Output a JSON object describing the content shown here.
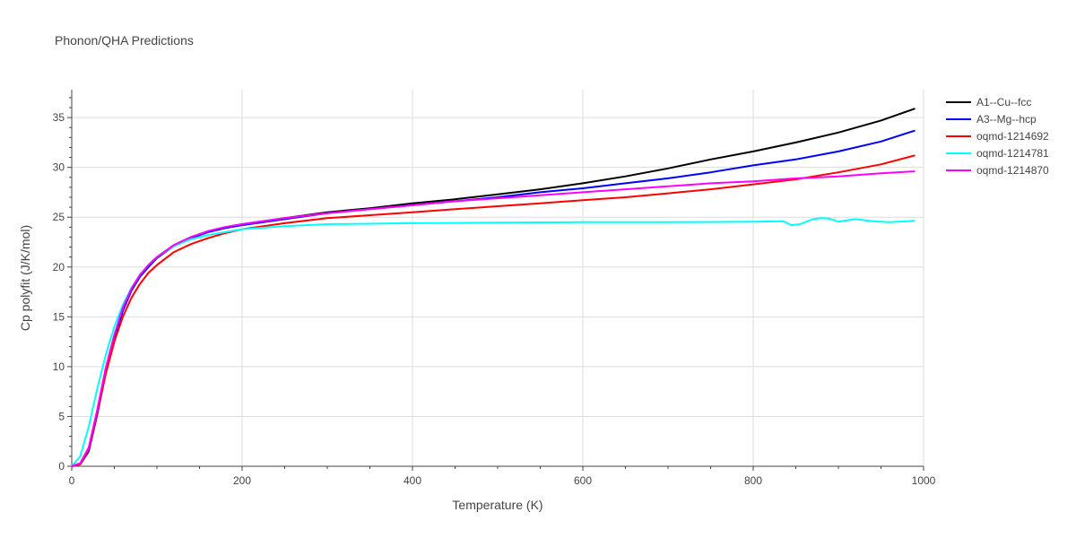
{
  "chart_data": {
    "type": "line",
    "title": "Phonon/QHA Predictions",
    "xlabel": "Temperature (K)",
    "ylabel": "Cp polyfit (J/K/mol)",
    "xlim": [
      0,
      1000
    ],
    "ylim": [
      0,
      37.8
    ],
    "xticks": [
      0,
      200,
      400,
      600,
      800,
      1000
    ],
    "yticks": [
      0,
      5,
      10,
      15,
      20,
      25,
      30,
      35
    ],
    "grid": true,
    "legend_position": "top-right",
    "series": [
      {
        "name": "A1--Cu--fcc",
        "color": "#000000",
        "x": [
          0,
          10,
          20,
          30,
          40,
          50,
          60,
          70,
          80,
          90,
          100,
          120,
          140,
          160,
          180,
          200,
          250,
          300,
          350,
          400,
          450,
          500,
          550,
          600,
          650,
          700,
          750,
          800,
          850,
          900,
          950,
          990
        ],
        "y": [
          0,
          0.3,
          1.8,
          5.6,
          9.8,
          13.1,
          15.9,
          17.8,
          19.2,
          20.2,
          21.0,
          22.2,
          23.0,
          23.6,
          24.0,
          24.3,
          24.9,
          25.5,
          25.9,
          26.4,
          26.8,
          27.3,
          27.8,
          28.4,
          29.1,
          29.9,
          30.8,
          31.6,
          32.5,
          33.5,
          34.7,
          35.9
        ]
      },
      {
        "name": "A3--Mg--hcp",
        "color": "#0000ff",
        "x": [
          0,
          10,
          20,
          30,
          40,
          50,
          60,
          70,
          80,
          90,
          100,
          120,
          140,
          160,
          180,
          200,
          250,
          300,
          350,
          400,
          450,
          500,
          550,
          600,
          650,
          700,
          750,
          800,
          850,
          900,
          950,
          990
        ],
        "y": [
          0,
          0.2,
          1.5,
          5.2,
          9.4,
          12.8,
          15.6,
          17.6,
          19.0,
          20.0,
          20.9,
          22.1,
          22.9,
          23.5,
          23.9,
          24.2,
          24.8,
          25.4,
          25.8,
          26.2,
          26.6,
          27.0,
          27.5,
          27.9,
          28.4,
          28.9,
          29.5,
          30.2,
          30.8,
          31.6,
          32.6,
          33.7
        ]
      },
      {
        "name": "oqmd-1214692",
        "color": "#ff0000",
        "x": [
          0,
          10,
          20,
          30,
          40,
          50,
          60,
          70,
          80,
          90,
          100,
          120,
          140,
          160,
          180,
          200,
          250,
          300,
          350,
          400,
          450,
          500,
          550,
          600,
          650,
          700,
          750,
          800,
          850,
          900,
          950,
          990
        ],
        "y": [
          0,
          0.2,
          1.7,
          5.4,
          9.3,
          12.5,
          15.0,
          16.9,
          18.3,
          19.4,
          20.2,
          21.5,
          22.3,
          22.9,
          23.4,
          23.8,
          24.4,
          24.9,
          25.2,
          25.5,
          25.8,
          26.1,
          26.4,
          26.7,
          27.0,
          27.4,
          27.8,
          28.3,
          28.8,
          29.5,
          30.3,
          31.2
        ]
      },
      {
        "name": "oqmd-1214781",
        "color": "#00ffff",
        "x": [
          0,
          10,
          20,
          30,
          40,
          50,
          60,
          70,
          80,
          90,
          100,
          120,
          140,
          160,
          180,
          200,
          250,
          300,
          400,
          500,
          600,
          700,
          800,
          835,
          845,
          855,
          870,
          880,
          890,
          900,
          920,
          940,
          960,
          980,
          990
        ],
        "y": [
          0,
          1.0,
          4.0,
          7.8,
          11.2,
          14.0,
          16.2,
          17.9,
          19.2,
          20.2,
          21.0,
          22.1,
          22.8,
          23.2,
          23.5,
          23.8,
          24.1,
          24.3,
          24.4,
          24.45,
          24.5,
          24.5,
          24.55,
          24.6,
          24.2,
          24.3,
          24.8,
          24.9,
          24.85,
          24.55,
          24.8,
          24.6,
          24.5,
          24.6,
          24.65
        ]
      },
      {
        "name": "oqmd-1214870",
        "color": "#ff00ff",
        "x": [
          0,
          10,
          20,
          30,
          40,
          50,
          60,
          70,
          80,
          90,
          100,
          120,
          140,
          160,
          180,
          200,
          250,
          300,
          350,
          400,
          450,
          500,
          550,
          600,
          650,
          700,
          750,
          800,
          850,
          900,
          950,
          990
        ],
        "y": [
          0,
          0.3,
          1.9,
          5.7,
          9.9,
          13.2,
          15.9,
          17.8,
          19.2,
          20.2,
          21.0,
          22.2,
          23.0,
          23.6,
          24.0,
          24.3,
          24.9,
          25.4,
          25.8,
          26.2,
          26.6,
          26.9,
          27.2,
          27.5,
          27.8,
          28.1,
          28.4,
          28.6,
          28.9,
          29.1,
          29.4,
          29.6
        ]
      }
    ]
  }
}
